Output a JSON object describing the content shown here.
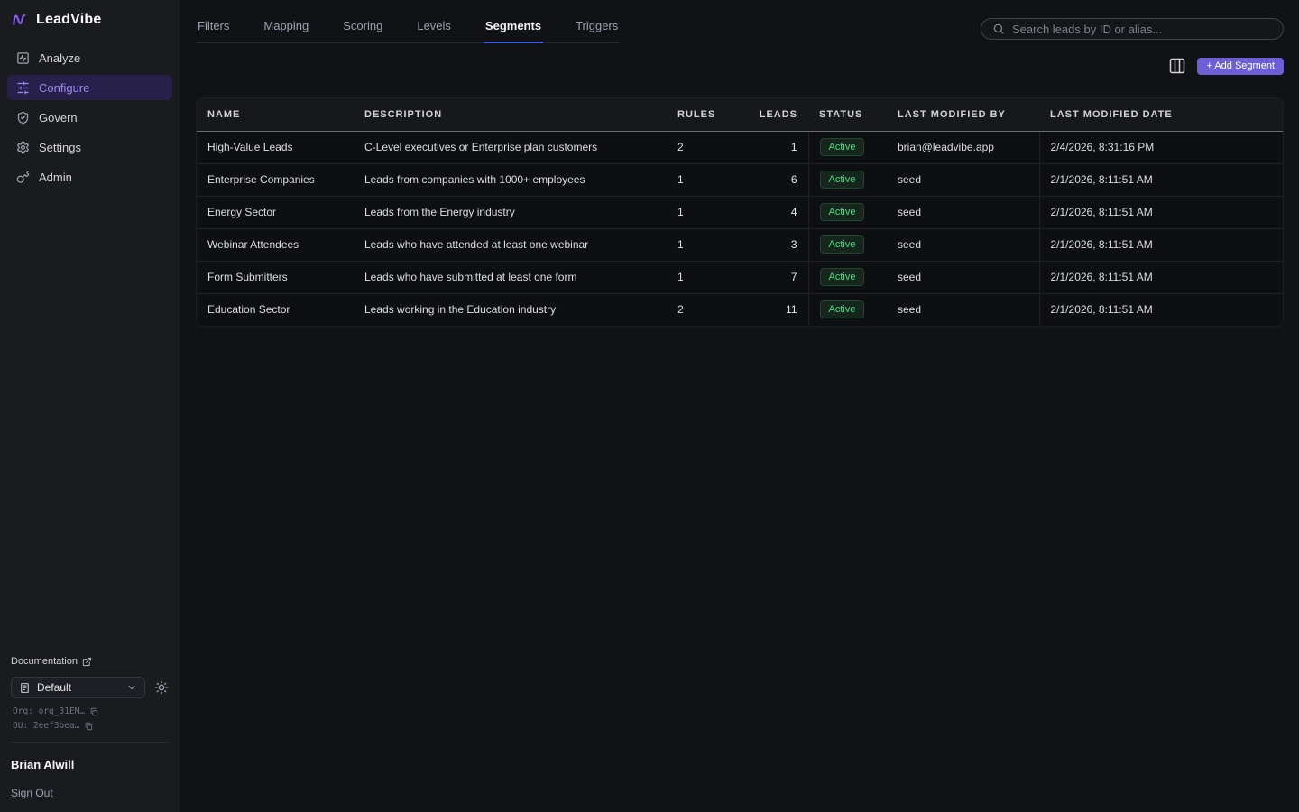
{
  "app": {
    "title": "LeadVibe"
  },
  "sidebar": {
    "logo": "LeadVibe",
    "nav": [
      {
        "label": "Analyze",
        "icon": "activity-square-icon",
        "active": false
      },
      {
        "label": "Configure",
        "icon": "sliders-icon",
        "active": true
      },
      {
        "label": "Govern",
        "icon": "shield-check-icon",
        "active": false
      },
      {
        "label": "Settings",
        "icon": "gear-icon",
        "active": false
      },
      {
        "label": "Admin",
        "icon": "key-icon",
        "active": false
      }
    ],
    "footer": {
      "documentation": "Documentation",
      "environment": "Default",
      "org": "Org: org_31EM…",
      "ou": "OU: 2eef3bea…",
      "user": "Brian Alwill",
      "sign_out": "Sign Out"
    }
  },
  "tabs": [
    {
      "label": "Filters",
      "active": false
    },
    {
      "label": "Mapping",
      "active": false
    },
    {
      "label": "Scoring",
      "active": false
    },
    {
      "label": "Levels",
      "active": false
    },
    {
      "label": "Segments",
      "active": true
    },
    {
      "label": "Triggers",
      "active": false
    }
  ],
  "search": {
    "placeholder": "Search leads by ID or alias..."
  },
  "toolbar": {
    "add_segment": "+ Add Segment"
  },
  "table": {
    "columns": [
      "NAME",
      "DESCRIPTION",
      "RULES",
      "LEADS",
      "STATUS",
      "LAST MODIFIED BY",
      "LAST MODIFIED DATE"
    ],
    "rows": [
      {
        "name": "High-Value Leads",
        "description": "C-Level executives or Enterprise plan customers",
        "rules": "2",
        "leads": "1",
        "status": "Active",
        "modified_by": "brian@leadvibe.app",
        "modified_date": "2/4/2026, 8:31:16 PM"
      },
      {
        "name": "Enterprise Companies",
        "description": "Leads from companies with 1000+ employees",
        "rules": "1",
        "leads": "6",
        "status": "Active",
        "modified_by": "seed",
        "modified_date": "2/1/2026, 8:11:51 AM"
      },
      {
        "name": "Energy Sector",
        "description": "Leads from the Energy industry",
        "rules": "1",
        "leads": "4",
        "status": "Active",
        "modified_by": "seed",
        "modified_date": "2/1/2026, 8:11:51 AM"
      },
      {
        "name": "Webinar Attendees",
        "description": "Leads who have attended at least one webinar",
        "rules": "1",
        "leads": "3",
        "status": "Active",
        "modified_by": "seed",
        "modified_date": "2/1/2026, 8:11:51 AM"
      },
      {
        "name": "Form Submitters",
        "description": "Leads who have submitted at least one form",
        "rules": "1",
        "leads": "7",
        "status": "Active",
        "modified_by": "seed",
        "modified_date": "2/1/2026, 8:11:51 AM"
      },
      {
        "name": "Education Sector",
        "description": "Leads working in the Education industry",
        "rules": "2",
        "leads": "11",
        "status": "Active",
        "modified_by": "seed",
        "modified_date": "2/1/2026, 8:11:51 AM"
      }
    ]
  },
  "colors": {
    "accent_purple": "#6e5fd6",
    "logo_purple": "#8b5cf6",
    "tab_underline_blue": "#3e63dd",
    "status_green": "#4ade80",
    "sidebar_bg": "#1a1b1f",
    "main_bg": "#111215",
    "row_bg": "#0e0f12"
  }
}
